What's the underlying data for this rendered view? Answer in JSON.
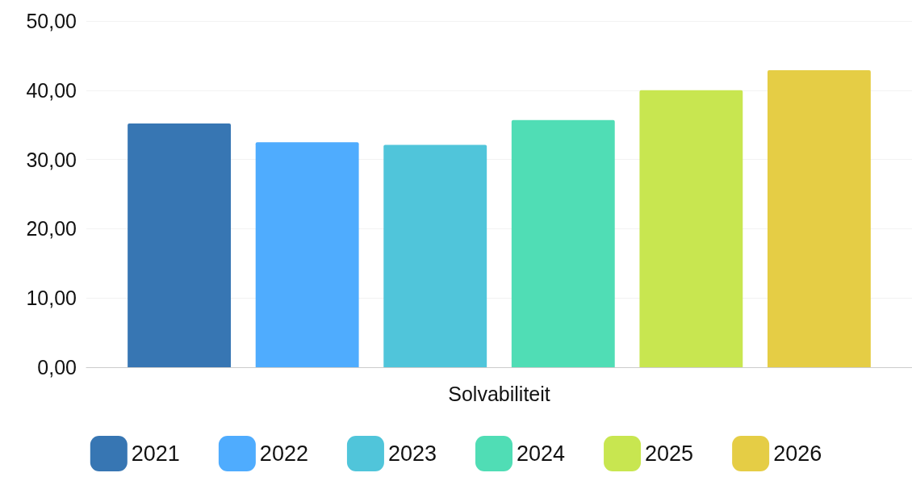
{
  "chart_data": {
    "type": "bar",
    "categories": [
      "Solvabiliteit"
    ],
    "series": [
      {
        "name": "2021",
        "color": "#3776b3",
        "values": [
          35.2
        ]
      },
      {
        "name": "2022",
        "color": "#4facfe",
        "values": [
          32.5
        ]
      },
      {
        "name": "2023",
        "color": "#50c5da",
        "values": [
          32.1
        ]
      },
      {
        "name": "2024",
        "color": "#50ddb5",
        "values": [
          35.7
        ]
      },
      {
        "name": "2025",
        "color": "#c8e650",
        "values": [
          40.0
        ]
      },
      {
        "name": "2026",
        "color": "#e5cd45",
        "values": [
          42.9
        ]
      }
    ],
    "ylim": [
      0,
      50
    ],
    "yticks": [
      {
        "value": 0,
        "label": "0,00"
      },
      {
        "value": 10,
        "label": "10,00"
      },
      {
        "value": 20,
        "label": "20,00"
      },
      {
        "value": 30,
        "label": "30,00"
      },
      {
        "value": 40,
        "label": "40,00"
      },
      {
        "value": 50,
        "label": "50,00"
      }
    ],
    "grid": "y",
    "legend": "bottom"
  }
}
